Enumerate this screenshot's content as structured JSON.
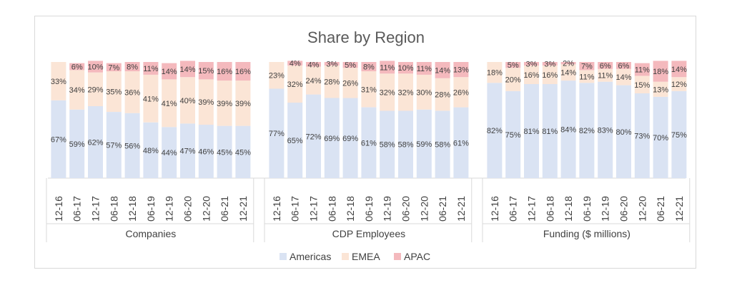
{
  "chart_data": {
    "type": "bar",
    "stacked": true,
    "title": "Share by Region",
    "categories": [
      "12-16",
      "06-17",
      "12-17",
      "06-18",
      "12-18",
      "06-19",
      "12-19",
      "06-20",
      "12-20",
      "06-21",
      "12-21"
    ],
    "groups": [
      {
        "name": "Companies",
        "series": [
          {
            "name": "Americas",
            "values": [
              67,
              59,
              62,
              57,
              56,
              48,
              44,
              47,
              46,
              45,
              45
            ]
          },
          {
            "name": "EMEA",
            "values": [
              33,
              34,
              29,
              35,
              36,
              41,
              41,
              40,
              39,
              39,
              39
            ]
          },
          {
            "name": "APAC",
            "values": [
              0,
              6,
              10,
              7,
              8,
              11,
              14,
              14,
              15,
              16,
              16
            ]
          }
        ]
      },
      {
        "name": "CDP Employees",
        "series": [
          {
            "name": "Americas",
            "values": [
              77,
              65,
              72,
              69,
              69,
              61,
              58,
              58,
              59,
              58,
              61
            ]
          },
          {
            "name": "EMEA",
            "values": [
              23,
              32,
              24,
              28,
              26,
              31,
              32,
              32,
              30,
              28,
              26
            ]
          },
          {
            "name": "APAC",
            "values": [
              0,
              4,
              4,
              3,
              5,
              8,
              11,
              10,
              11,
              14,
              13
            ]
          }
        ]
      },
      {
        "name": "Funding ($ millions)",
        "series": [
          {
            "name": "Americas",
            "values": [
              82,
              75,
              81,
              81,
              84,
              82,
              83,
              80,
              73,
              70,
              75
            ]
          },
          {
            "name": "EMEA",
            "values": [
              18,
              20,
              16,
              16,
              14,
              11,
              11,
              14,
              15,
              13,
              12
            ]
          },
          {
            "name": "APAC",
            "values": [
              0,
              5,
              3,
              3,
              2,
              7,
              6,
              6,
              11,
              18,
              14
            ]
          }
        ]
      }
    ],
    "legend": [
      "Americas",
      "EMEA",
      "APAC"
    ],
    "legend_position": "bottom",
    "ylim": [
      0,
      100
    ],
    "colors": {
      "Americas": "#dae3f3",
      "EMEA": "#fbe5d6",
      "APAC": "#f4b9bd"
    }
  }
}
